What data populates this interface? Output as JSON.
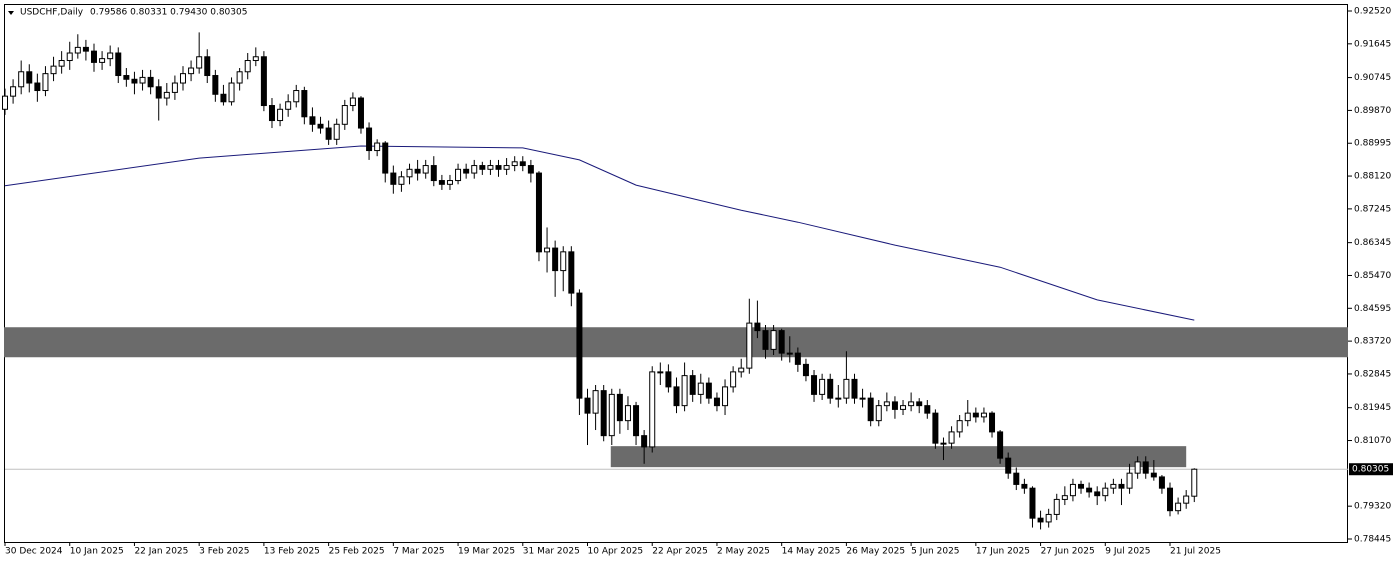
{
  "chart_data": {
    "type": "candlestick",
    "symbol": "USDCHF,Daily",
    "header_values": "0.79586 0.80331 0.79430 0.80305",
    "up_color": "#ffffff",
    "down_color": "#000000",
    "zone_color": "#6b6b6b",
    "ma_color": "#1a1a7a",
    "xlim": [
      0,
      166
    ],
    "ylim": [
      0.78445,
      0.9252
    ],
    "yticks": [
      {
        "value": 0.9252,
        "label": "0.92520"
      },
      0.91645,
      0.90745,
      {
        "value": 0.8987,
        "label": "0.89870"
      },
      0.88995,
      {
        "value": 0.8812,
        "label": "0.88120"
      },
      0.87245,
      0.86345,
      {
        "value": 0.8547,
        "label": "0.85470"
      },
      0.84595,
      {
        "value": 0.8372,
        "label": "0.83720"
      },
      0.82845,
      0.81945,
      {
        "value": 0.8107,
        "label": "0.81070"
      },
      {
        "value": 0.7932,
        "label": "0.79320"
      },
      0.78445
    ],
    "price_line": 0.80305,
    "categories": [
      "30 Dec 2024",
      null,
      null,
      null,
      null,
      null,
      null,
      null,
      "10 Jan 2025",
      null,
      null,
      null,
      null,
      null,
      null,
      null,
      "22 Jan 2025",
      null,
      null,
      null,
      null,
      null,
      null,
      null,
      "3 Feb 2025",
      null,
      null,
      null,
      null,
      null,
      null,
      null,
      "13 Feb 2025",
      null,
      null,
      null,
      null,
      null,
      null,
      null,
      "25 Feb 2025",
      null,
      null,
      null,
      null,
      null,
      null,
      null,
      "7 Mar 2025",
      null,
      null,
      null,
      null,
      null,
      null,
      null,
      "19 Mar 2025",
      null,
      null,
      null,
      null,
      null,
      null,
      null,
      "31 Mar 2025",
      null,
      null,
      null,
      null,
      null,
      null,
      null,
      "10 Apr 2025",
      null,
      null,
      null,
      null,
      null,
      null,
      null,
      "22 Apr 2025",
      null,
      null,
      null,
      null,
      null,
      null,
      null,
      "2 May 2025",
      null,
      null,
      null,
      null,
      null,
      null,
      null,
      "14 May 2025",
      null,
      null,
      null,
      null,
      null,
      null,
      null,
      "26 May 2025",
      null,
      null,
      null,
      null,
      null,
      null,
      null,
      "5 Jun 2025",
      null,
      null,
      null,
      null,
      null,
      null,
      null,
      "17 Jun 2025",
      null,
      null,
      null,
      null,
      null,
      null,
      null,
      "27 Jun 2025",
      null,
      null,
      null,
      null,
      null,
      null,
      null,
      "9 Jul 2025",
      null,
      null,
      null,
      null,
      null,
      null,
      null,
      "21 Jul 2025",
      null,
      null,
      null
    ],
    "ohlc": [
      [
        0.899,
        0.9045,
        0.8975,
        0.9025
      ],
      [
        0.9025,
        0.907,
        0.9005,
        0.905
      ],
      [
        0.905,
        0.912,
        0.903,
        0.909
      ],
      [
        0.909,
        0.911,
        0.9035,
        0.906
      ],
      [
        0.906,
        0.9085,
        0.901,
        0.904
      ],
      [
        0.904,
        0.9105,
        0.9025,
        0.9085
      ],
      [
        0.9085,
        0.913,
        0.9065,
        0.9105
      ],
      [
        0.9105,
        0.9145,
        0.9085,
        0.912
      ],
      [
        0.912,
        0.917,
        0.9095,
        0.914
      ],
      [
        0.914,
        0.919,
        0.9125,
        0.9155
      ],
      [
        0.9155,
        0.9175,
        0.912,
        0.9145
      ],
      [
        0.9145,
        0.9165,
        0.909,
        0.9115
      ],
      [
        0.9115,
        0.9145,
        0.9095,
        0.9125
      ],
      [
        0.9125,
        0.916,
        0.9105,
        0.914
      ],
      [
        0.914,
        0.9155,
        0.906,
        0.908
      ],
      [
        0.908,
        0.91,
        0.905,
        0.907
      ],
      [
        0.907,
        0.909,
        0.903,
        0.906
      ],
      [
        0.906,
        0.9095,
        0.904,
        0.9075
      ],
      [
        0.9075,
        0.9095,
        0.903,
        0.905
      ],
      [
        0.905,
        0.907,
        0.896,
        0.902
      ],
      [
        0.902,
        0.906,
        0.9,
        0.9035
      ],
      [
        0.9035,
        0.908,
        0.9015,
        0.906
      ],
      [
        0.906,
        0.9105,
        0.904,
        0.9085
      ],
      [
        0.9085,
        0.912,
        0.9065,
        0.91
      ],
      [
        0.91,
        0.9195,
        0.9085,
        0.913
      ],
      [
        0.913,
        0.915,
        0.906,
        0.908
      ],
      [
        0.908,
        0.9095,
        0.901,
        0.903
      ],
      [
        0.903,
        0.9055,
        0.9,
        0.901
      ],
      [
        0.901,
        0.9075,
        0.9,
        0.906
      ],
      [
        0.906,
        0.91,
        0.904,
        0.909
      ],
      [
        0.909,
        0.914,
        0.907,
        0.912
      ],
      [
        0.912,
        0.9155,
        0.9105,
        0.913
      ],
      [
        0.913,
        0.9145,
        0.8985,
        0.9
      ],
      [
        0.9,
        0.902,
        0.894,
        0.896
      ],
      [
        0.896,
        0.9005,
        0.8945,
        0.899
      ],
      [
        0.899,
        0.903,
        0.897,
        0.901
      ],
      [
        0.901,
        0.9055,
        0.8995,
        0.904
      ],
      [
        0.904,
        0.905,
        0.895,
        0.897
      ],
      [
        0.897,
        0.8995,
        0.893,
        0.895
      ],
      [
        0.895,
        0.897,
        0.8925,
        0.894
      ],
      [
        0.894,
        0.896,
        0.8895,
        0.891
      ],
      [
        0.891,
        0.8965,
        0.8895,
        0.895
      ],
      [
        0.895,
        0.9015,
        0.8935,
        0.9
      ],
      [
        0.9,
        0.9035,
        0.8985,
        0.902
      ],
      [
        0.902,
        0.9025,
        0.8925,
        0.894
      ],
      [
        0.894,
        0.8955,
        0.8855,
        0.888
      ],
      [
        0.888,
        0.891,
        0.8865,
        0.89
      ],
      [
        0.89,
        0.8905,
        0.8795,
        0.882
      ],
      [
        0.882,
        0.884,
        0.8765,
        0.879
      ],
      [
        0.879,
        0.8825,
        0.877,
        0.881
      ],
      [
        0.881,
        0.8845,
        0.879,
        0.883
      ],
      [
        0.883,
        0.8855,
        0.88,
        0.882
      ],
      [
        0.882,
        0.8855,
        0.8805,
        0.884
      ],
      [
        0.884,
        0.8865,
        0.8785,
        0.88
      ],
      [
        0.88,
        0.8815,
        0.8775,
        0.879
      ],
      [
        0.879,
        0.8815,
        0.8775,
        0.88
      ],
      [
        0.88,
        0.8845,
        0.879,
        0.883
      ],
      [
        0.883,
        0.8845,
        0.8805,
        0.882
      ],
      [
        0.882,
        0.8855,
        0.8805,
        0.884
      ],
      [
        0.884,
        0.885,
        0.8815,
        0.883
      ],
      [
        0.883,
        0.8855,
        0.8815,
        0.884
      ],
      [
        0.884,
        0.8855,
        0.881,
        0.883
      ],
      [
        0.883,
        0.886,
        0.8815,
        0.884
      ],
      [
        0.884,
        0.8865,
        0.8825,
        0.885
      ],
      [
        0.885,
        0.8865,
        0.8825,
        0.884
      ],
      [
        0.884,
        0.8855,
        0.8795,
        0.882
      ],
      [
        0.882,
        0.8825,
        0.8585,
        0.861
      ],
      [
        0.861,
        0.8675,
        0.8555,
        0.862
      ],
      [
        0.862,
        0.864,
        0.849,
        0.856
      ],
      [
        0.856,
        0.8625,
        0.8505,
        0.861
      ],
      [
        0.861,
        0.8625,
        0.8465,
        0.85
      ],
      [
        0.85,
        0.851,
        0.8175,
        0.822
      ],
      [
        0.822,
        0.8245,
        0.8095,
        0.818
      ],
      [
        0.818,
        0.8255,
        0.8135,
        0.824
      ],
      [
        0.824,
        0.8255,
        0.8105,
        0.812
      ],
      [
        0.812,
        0.8245,
        0.8095,
        0.823
      ],
      [
        0.823,
        0.8245,
        0.8125,
        0.816
      ],
      [
        0.816,
        0.8225,
        0.8135,
        0.82
      ],
      [
        0.82,
        0.821,
        0.8095,
        0.812
      ],
      [
        0.812,
        0.8135,
        0.8045,
        0.809
      ],
      [
        0.809,
        0.8305,
        0.8075,
        0.829
      ],
      [
        0.829,
        0.8315,
        0.8255,
        0.829
      ],
      [
        0.829,
        0.831,
        0.8235,
        0.825
      ],
      [
        0.825,
        0.8275,
        0.818,
        0.82
      ],
      [
        0.82,
        0.8315,
        0.8185,
        0.828
      ],
      [
        0.828,
        0.8295,
        0.821,
        0.823
      ],
      [
        0.823,
        0.8285,
        0.8205,
        0.826
      ],
      [
        0.826,
        0.8275,
        0.8205,
        0.822
      ],
      [
        0.822,
        0.8235,
        0.8185,
        0.82
      ],
      [
        0.82,
        0.827,
        0.8175,
        0.825
      ],
      [
        0.825,
        0.8305,
        0.8235,
        0.829
      ],
      [
        0.829,
        0.8325,
        0.8275,
        0.83
      ],
      [
        0.83,
        0.8485,
        0.8285,
        0.842
      ],
      [
        0.842,
        0.848,
        0.838,
        0.84
      ],
      [
        0.84,
        0.8415,
        0.8325,
        0.835
      ],
      [
        0.835,
        0.8415,
        0.8335,
        0.84
      ],
      [
        0.84,
        0.8405,
        0.832,
        0.834
      ],
      [
        0.834,
        0.8385,
        0.8315,
        0.834
      ],
      [
        0.834,
        0.8355,
        0.829,
        0.831
      ],
      [
        0.831,
        0.8325,
        0.8265,
        0.828
      ],
      [
        0.828,
        0.8295,
        0.821,
        0.823
      ],
      [
        0.823,
        0.8285,
        0.8215,
        0.827
      ],
      [
        0.827,
        0.8285,
        0.8205,
        0.822
      ],
      [
        0.822,
        0.8255,
        0.8195,
        0.822
      ],
      [
        0.822,
        0.8345,
        0.8205,
        0.827
      ],
      [
        0.827,
        0.8285,
        0.8205,
        0.822
      ],
      [
        0.822,
        0.8245,
        0.8195,
        0.822
      ],
      [
        0.822,
        0.8235,
        0.8145,
        0.816
      ],
      [
        0.816,
        0.8215,
        0.8145,
        0.82
      ],
      [
        0.82,
        0.8235,
        0.8185,
        0.821
      ],
      [
        0.821,
        0.8225,
        0.8165,
        0.819
      ],
      [
        0.819,
        0.8215,
        0.8175,
        0.82
      ],
      [
        0.82,
        0.8235,
        0.8185,
        0.821
      ],
      [
        0.821,
        0.822,
        0.818,
        0.82
      ],
      [
        0.82,
        0.8215,
        0.8165,
        0.818
      ],
      [
        0.818,
        0.819,
        0.8085,
        0.81
      ],
      [
        0.81,
        0.8115,
        0.8055,
        0.81
      ],
      [
        0.81,
        0.8145,
        0.8085,
        0.813
      ],
      [
        0.813,
        0.8175,
        0.8115,
        0.816
      ],
      [
        0.816,
        0.8215,
        0.8145,
        0.818
      ],
      [
        0.818,
        0.8195,
        0.8155,
        0.817
      ],
      [
        0.817,
        0.8195,
        0.8155,
        0.818
      ],
      [
        0.818,
        0.8185,
        0.8115,
        0.813
      ],
      [
        0.813,
        0.8135,
        0.8045,
        0.806
      ],
      [
        0.806,
        0.8075,
        0.8005,
        0.802
      ],
      [
        0.802,
        0.8035,
        0.7975,
        0.799
      ],
      [
        0.799,
        0.8005,
        0.7965,
        0.798
      ],
      [
        0.798,
        0.7985,
        0.7875,
        0.79
      ],
      [
        0.79,
        0.792,
        0.787,
        0.789
      ],
      [
        0.789,
        0.7925,
        0.7875,
        0.791
      ],
      [
        0.791,
        0.7965,
        0.7895,
        0.795
      ],
      [
        0.795,
        0.7985,
        0.7935,
        0.796
      ],
      [
        0.796,
        0.8005,
        0.7945,
        0.799
      ],
      [
        0.799,
        0.8,
        0.7965,
        0.798
      ],
      [
        0.798,
        0.7995,
        0.7955,
        0.797
      ],
      [
        0.797,
        0.7985,
        0.7935,
        0.796
      ],
      [
        0.796,
        0.7995,
        0.7945,
        0.798
      ],
      [
        0.798,
        0.8005,
        0.7965,
        0.799
      ],
      [
        0.799,
        0.8005,
        0.7935,
        0.798
      ],
      [
        0.798,
        0.8045,
        0.7965,
        0.802
      ],
      [
        0.802,
        0.8065,
        0.8005,
        0.805
      ],
      [
        0.805,
        0.8065,
        0.8005,
        0.802
      ],
      [
        0.802,
        0.8055,
        0.8,
        0.801
      ],
      [
        0.801,
        0.8015,
        0.7965,
        0.798
      ],
      [
        0.798,
        0.7995,
        0.7905,
        0.792
      ],
      [
        0.792,
        0.7955,
        0.791,
        0.794
      ],
      [
        0.794,
        0.7975,
        0.7925,
        0.7959
      ],
      [
        0.79586,
        0.80331,
        0.7943,
        0.80305
      ]
    ],
    "ma": {
      "x": [
        0,
        24,
        44,
        64,
        71,
        78,
        91,
        98,
        110,
        123,
        135,
        147
      ],
      "values": [
        0.8786,
        0.886,
        0.8892,
        0.8887,
        0.8855,
        0.8788,
        0.8721,
        0.8689,
        0.8628,
        0.8569,
        0.8482,
        0.8428
      ]
    },
    "zones": [
      {
        "x": [
          0,
          166
        ],
        "low": 0.8329,
        "high": 0.8409
      },
      {
        "x": [
          75,
          146
        ],
        "low": 0.8036,
        "high": 0.8092
      }
    ]
  }
}
